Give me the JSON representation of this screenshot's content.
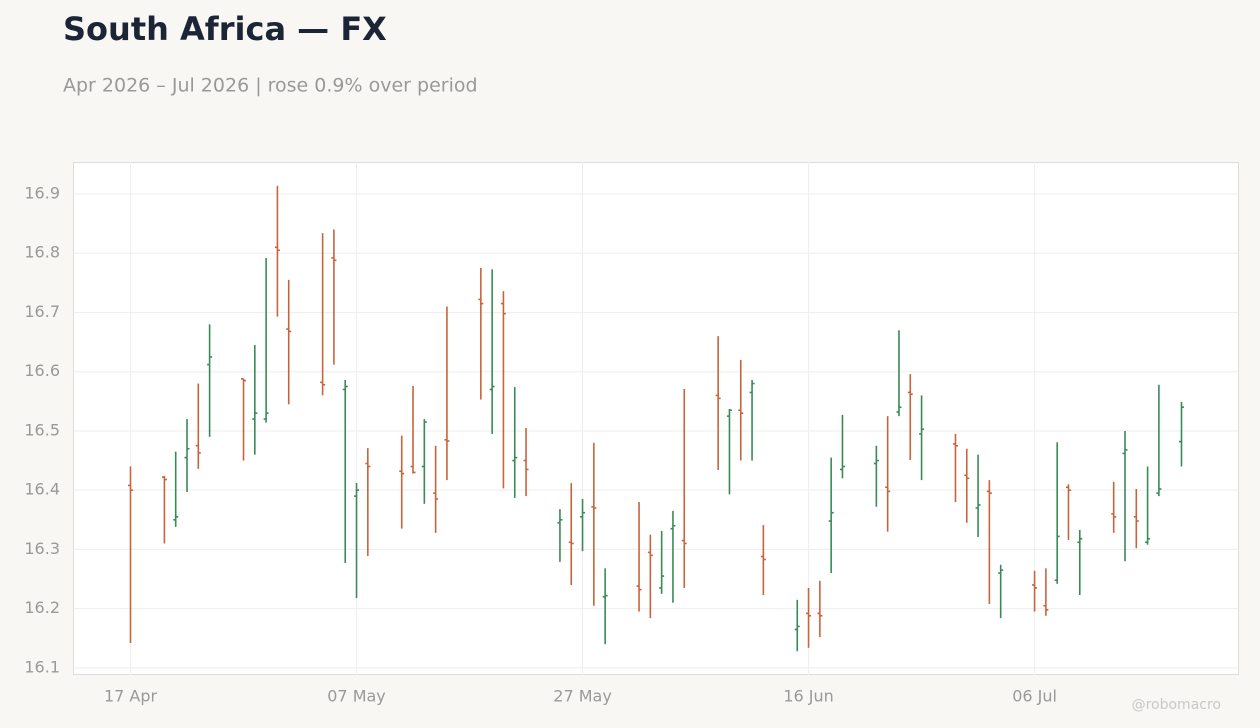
{
  "chart_data": {
    "type": "ohlc",
    "title": "South Africa — FX",
    "subtitle": "Apr 2026 – Jul 2026 | rose 0.9% over period",
    "watermark": "@robomacro",
    "up_color": "#3a8a58",
    "down_color": "#c8643c",
    "grid": true,
    "xlim": [
      "12 Apr",
      "24 Jul"
    ],
    "xticks": [
      "17 Apr",
      "07 May",
      "27 May",
      "16 Jun",
      "06 Jul"
    ],
    "ylim": [
      16.088,
      16.954
    ],
    "yticks": [
      16.1,
      16.2,
      16.3,
      16.4,
      16.5,
      16.6,
      16.7,
      16.8,
      16.9
    ],
    "x": [
      "17 Apr",
      "20 Apr",
      "21 Apr",
      "22 Apr",
      "23 Apr",
      "24 Apr",
      "27 Apr",
      "28 Apr",
      "29 Apr",
      "30 Apr",
      "01 May",
      "04 May",
      "05 May",
      "06 May",
      "07 May",
      "08 May",
      "11 May",
      "12 May",
      "13 May",
      "14 May",
      "15 May",
      "18 May",
      "19 May",
      "20 May",
      "21 May",
      "22 May",
      "25 May",
      "26 May",
      "27 May",
      "28 May",
      "29 May",
      "01 Jun",
      "02 Jun",
      "03 Jun",
      "04 Jun",
      "05 Jun",
      "08 Jun",
      "09 Jun",
      "10 Jun",
      "11 Jun",
      "12 Jun",
      "15 Jun",
      "16 Jun",
      "17 Jun",
      "18 Jun",
      "19 Jun",
      "22 Jun",
      "23 Jun",
      "24 Jun",
      "25 Jun",
      "26 Jun",
      "29 Jun",
      "30 Jun",
      "01 Jul",
      "02 Jul",
      "03 Jul",
      "06 Jul",
      "07 Jul",
      "08 Jul",
      "09 Jul",
      "10 Jul",
      "13 Jul",
      "14 Jul",
      "15 Jul",
      "16 Jul",
      "17 Jul",
      "19 Jul"
    ],
    "open": [
      16.408,
      16.422,
      16.35,
      16.455,
      16.475,
      16.612,
      16.588,
      16.52,
      16.52,
      16.81,
      16.672,
      16.582,
      16.792,
      16.57,
      16.39,
      16.445,
      16.432,
      16.44,
      16.44,
      16.395,
      16.485,
      16.722,
      16.57,
      16.715,
      16.45,
      16.45,
      16.345,
      16.312,
      16.355,
      16.372,
      16.22,
      16.238,
      16.295,
      16.235,
      16.335,
      16.315,
      16.56,
      16.525,
      16.535,
      16.565,
      16.288,
      16.165,
      16.192,
      16.192,
      16.348,
      16.435,
      16.445,
      16.405,
      16.532,
      16.565,
      16.495,
      16.478,
      16.425,
      16.37,
      16.398,
      16.26,
      16.24,
      16.205,
      16.248,
      16.405,
      16.312,
      16.36,
      16.462,
      16.355,
      16.312,
      16.395,
      16.482
    ],
    "high": [
      16.44,
      16.424,
      16.465,
      16.52,
      16.58,
      16.68,
      16.588,
      16.645,
      16.792,
      16.914,
      16.755,
      16.834,
      16.84,
      16.586,
      16.412,
      16.471,
      16.492,
      16.576,
      16.52,
      16.475,
      16.71,
      16.775,
      16.773,
      16.736,
      16.574,
      16.505,
      16.368,
      16.412,
      16.385,
      16.48,
      16.268,
      16.38,
      16.325,
      16.331,
      16.365,
      16.571,
      16.66,
      16.537,
      16.62,
      16.586,
      16.341,
      16.215,
      16.235,
      16.247,
      16.455,
      16.527,
      16.475,
      16.525,
      16.67,
      16.596,
      16.56,
      16.495,
      16.47,
      16.46,
      16.417,
      16.274,
      16.264,
      16.268,
      16.481,
      16.41,
      16.333,
      16.414,
      16.5,
      16.402,
      16.44,
      16.578,
      16.549
    ],
    "low": [
      16.142,
      16.31,
      16.338,
      16.397,
      16.436,
      16.49,
      16.45,
      16.46,
      16.514,
      16.693,
      16.545,
      16.56,
      16.612,
      16.277,
      16.218,
      16.289,
      16.335,
      16.428,
      16.377,
      16.328,
      16.417,
      16.553,
      16.495,
      16.403,
      16.387,
      16.39,
      16.279,
      16.24,
      16.297,
      16.205,
      16.14,
      16.195,
      16.184,
      16.225,
      16.21,
      16.235,
      16.434,
      16.393,
      16.45,
      16.45,
      16.223,
      16.128,
      16.134,
      16.152,
      16.26,
      16.42,
      16.372,
      16.33,
      16.525,
      16.451,
      16.417,
      16.38,
      16.345,
      16.321,
      16.208,
      16.184,
      16.195,
      16.188,
      16.242,
      16.316,
      16.223,
      16.328,
      16.28,
      16.302,
      16.308,
      16.39,
      16.44
    ],
    "close": [
      16.4,
      16.418,
      16.355,
      16.47,
      16.463,
      16.625,
      16.585,
      16.53,
      16.53,
      16.805,
      16.668,
      16.578,
      16.788,
      16.575,
      16.4,
      16.44,
      16.428,
      16.43,
      16.515,
      16.385,
      16.483,
      16.715,
      16.575,
      16.698,
      16.455,
      16.435,
      16.35,
      16.31,
      16.362,
      16.37,
      16.222,
      16.232,
      16.29,
      16.255,
      16.34,
      16.31,
      16.555,
      16.535,
      16.53,
      16.58,
      16.283,
      16.17,
      16.188,
      16.188,
      16.362,
      16.44,
      16.45,
      16.398,
      16.54,
      16.562,
      16.503,
      16.475,
      16.42,
      16.375,
      16.395,
      16.265,
      16.235,
      16.198,
      16.322,
      16.4,
      16.318,
      16.355,
      16.468,
      16.348,
      16.318,
      16.402,
      16.54
    ]
  }
}
